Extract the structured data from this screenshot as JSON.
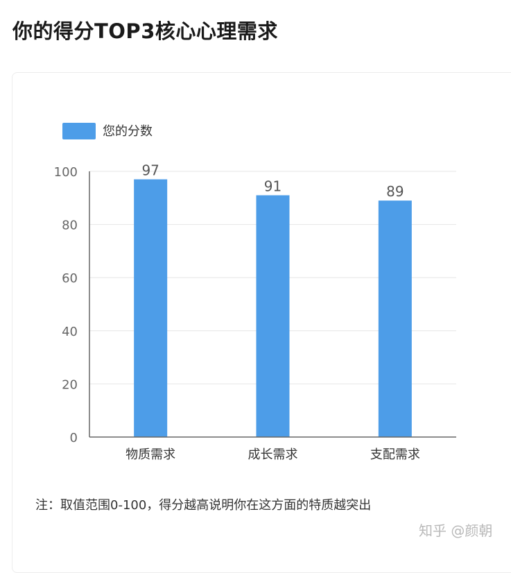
{
  "page": {
    "title": "你的得分TOP3核心心理需求",
    "note": "注：取值范围0-100，得分越高说明你在这方面的特质越突出",
    "watermark": "知乎 @颜朝"
  },
  "colors": {
    "bar": "#4d9de8",
    "axis": "#666666",
    "grid": "#e6e6e6",
    "tick_text": "#666666",
    "label_text": "#555555"
  },
  "chart_data": {
    "type": "bar",
    "categories": [
      "物质需求",
      "成长需求",
      "支配需求"
    ],
    "series": [
      {
        "name": "您的分数",
        "values": [
          97,
          91,
          89
        ]
      }
    ],
    "yticks": [
      0,
      20,
      40,
      60,
      80,
      100
    ],
    "ylim": [
      0,
      100
    ],
    "grid": true,
    "legend": "top-left",
    "data_labels": true
  }
}
